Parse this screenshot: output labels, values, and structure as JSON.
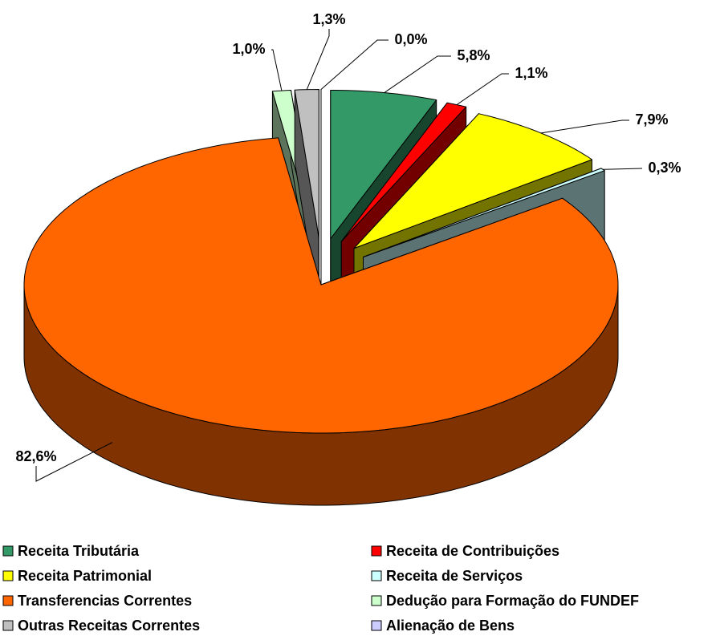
{
  "chart_data": {
    "type": "pie3d",
    "categories": [
      "Receita Tributária",
      "Receita de Contribuições",
      "Receita Patrimonial",
      "Receita de Serviços",
      "Transferencias Correntes",
      "Dedução para Formação do FUNDEF",
      "Outras Receitas Correntes",
      "Alienação de Bens"
    ],
    "values": [
      5.8,
      1.1,
      7.9,
      0.3,
      82.6,
      1.0,
      1.3,
      0.0
    ],
    "value_labels": [
      "5,8%",
      "1,1%",
      "7,9%",
      "0,3%",
      "82,6%",
      "1,0%",
      "1,3%",
      "0,0%"
    ],
    "colors": [
      "#339966",
      "#ff0000",
      "#ffff00",
      "#ccffff",
      "#ff6600",
      "#ccffcc",
      "#c0c0c0",
      "#ccccff"
    ],
    "legend": "bottom"
  }
}
